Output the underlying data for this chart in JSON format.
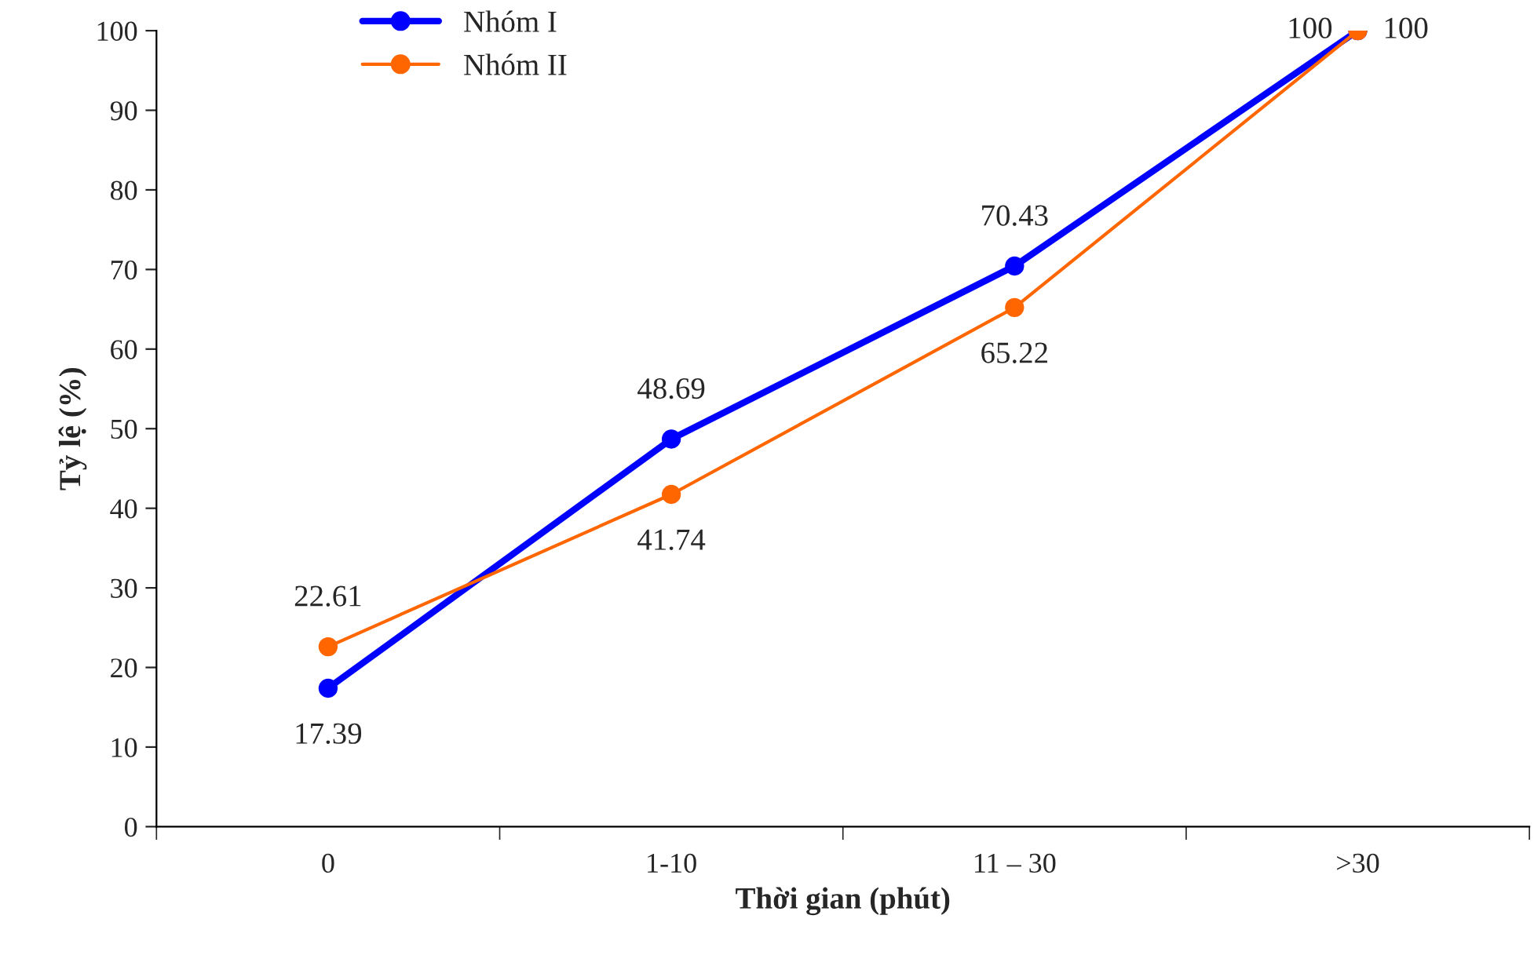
{
  "chart_data": {
    "type": "line",
    "xlabel": "Thời gian (phút)",
    "ylabel": "Tỷ lệ (%)",
    "categories": [
      "0",
      "1-10",
      "11 – 30",
      ">30"
    ],
    "series": [
      {
        "name": "Nhóm I",
        "color": "#0000ff",
        "values": [
          17.39,
          48.69,
          70.43,
          100
        ]
      },
      {
        "name": "Nhóm II",
        "color": "#ff6600",
        "values": [
          22.61,
          41.74,
          65.22,
          100
        ]
      }
    ],
    "ylim": [
      0,
      100
    ],
    "yticks": [
      0,
      10,
      20,
      30,
      40,
      50,
      60,
      70,
      80,
      90,
      100
    ],
    "data_labels": true,
    "legend": "top left",
    "grid": false,
    "marker": "circle",
    "line_style": "solid"
  }
}
